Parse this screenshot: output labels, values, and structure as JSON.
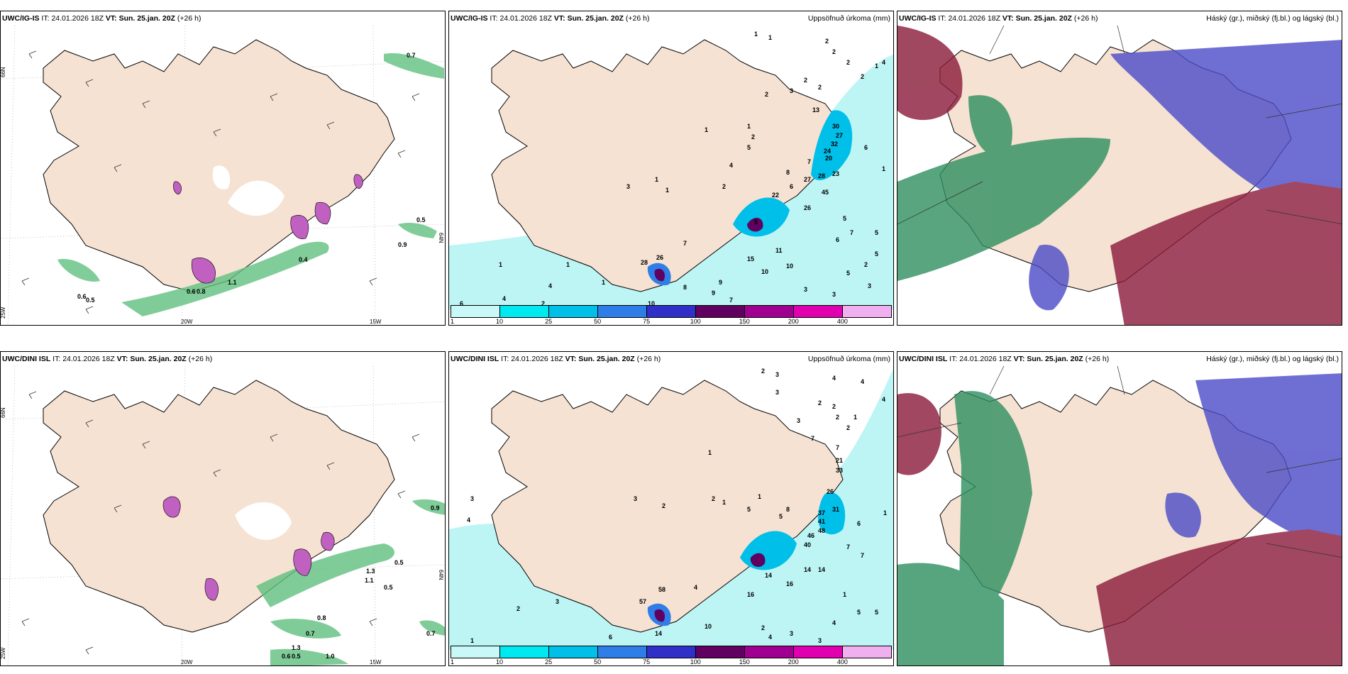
{
  "rows": [
    {
      "model": "UWC/IG-IS",
      "it_label": "IT:",
      "it_value": "24.01.2026 18Z",
      "vt_label": "VT:",
      "vt_value": "Sun. 25.jan. 20Z",
      "lead": "(+26 h)",
      "wind_values": [
        "0.7",
        "0.5",
        "0.9",
        "0.6",
        "0.5",
        "0.4",
        "0.6",
        "0.8",
        "1.1"
      ],
      "precip_values": [
        "1",
        "1",
        "2",
        "2",
        "2",
        "1",
        "2",
        "3",
        "2",
        "4",
        "2",
        "2",
        "13",
        "30",
        "27",
        "32",
        "24",
        "20",
        "6",
        "1",
        "7",
        "27",
        "28",
        "23",
        "45",
        "8",
        "6",
        "26",
        "5",
        "5",
        "7",
        "5",
        "2",
        "5",
        "6",
        "5",
        "28",
        "26",
        "15",
        "11",
        "10",
        "10",
        "7",
        "8",
        "9",
        "7",
        "9",
        "10",
        "6",
        "4",
        "1",
        "4",
        "2",
        "1",
        "1",
        "3",
        "3",
        "3",
        "3",
        "1",
        "1",
        "2",
        "5",
        "4",
        "1",
        "1",
        "2",
        "22"
      ],
      "cloud_title": "Háský (gr.), miðský (fj.bl.) og lágský (bl.)"
    },
    {
      "model": "UWC/DINI ISL",
      "it_label": "IT:",
      "it_value": "24.01.2026 18Z",
      "vt_label": "VT:",
      "vt_value": "Sun. 25.jan. 20Z",
      "lead": "(+26 h)",
      "wind_values": [
        "0.9",
        "0.5",
        "0.5",
        "1.1",
        "1.3",
        "0.8",
        "0.7",
        "0.7",
        "1.3",
        "0.6",
        "0.5",
        "1.0"
      ],
      "precip_values": [
        "2",
        "3",
        "4",
        "4",
        "2",
        "3",
        "2",
        "2",
        "2",
        "4",
        "1",
        "3",
        "7",
        "7",
        "21",
        "33",
        "26",
        "37",
        "41",
        "48",
        "46",
        "40",
        "31",
        "6",
        "7",
        "7",
        "1",
        "14",
        "14",
        "16",
        "16",
        "14",
        "8",
        "5",
        "5",
        "1",
        "1",
        "58",
        "57",
        "14",
        "10",
        "4",
        "4",
        "2",
        "3",
        "3",
        "4",
        "5",
        "1",
        "5",
        "1",
        "2",
        "3",
        "4",
        "2",
        "3",
        "1",
        "6",
        "3",
        "2"
      ],
      "cloud_title": "Háský (gr.), miðský (fj.bl.) og lágský (bl.)"
    }
  ],
  "precip_title": "Uppsöfnuð úrkoma (mm)",
  "axis_labels": {
    "lat66": "66N",
    "lat64": "64N",
    "lon20": "20W",
    "lon15": "15W",
    "lon25": "25W"
  },
  "colorbar": {
    "ticks": [
      "1",
      "10",
      "25",
      "50",
      "75",
      "100",
      "150",
      "200",
      "400"
    ],
    "colors": [
      "#c8f8f8",
      "#00e8f0",
      "#00bfe8",
      "#2f7ee8",
      "#3030c8",
      "#600060",
      "#a00090",
      "#e000b0",
      "#f0b0f0"
    ]
  },
  "colors": {
    "land": "#f5e2d2",
    "precip_light": "#bdf5f5",
    "wind_green": "#60c080",
    "magenta": "#c060c0",
    "cloud_high": "#2e8f60",
    "cloud_mid": "#4b4bc8",
    "cloud_low": "#8a1a3a"
  }
}
